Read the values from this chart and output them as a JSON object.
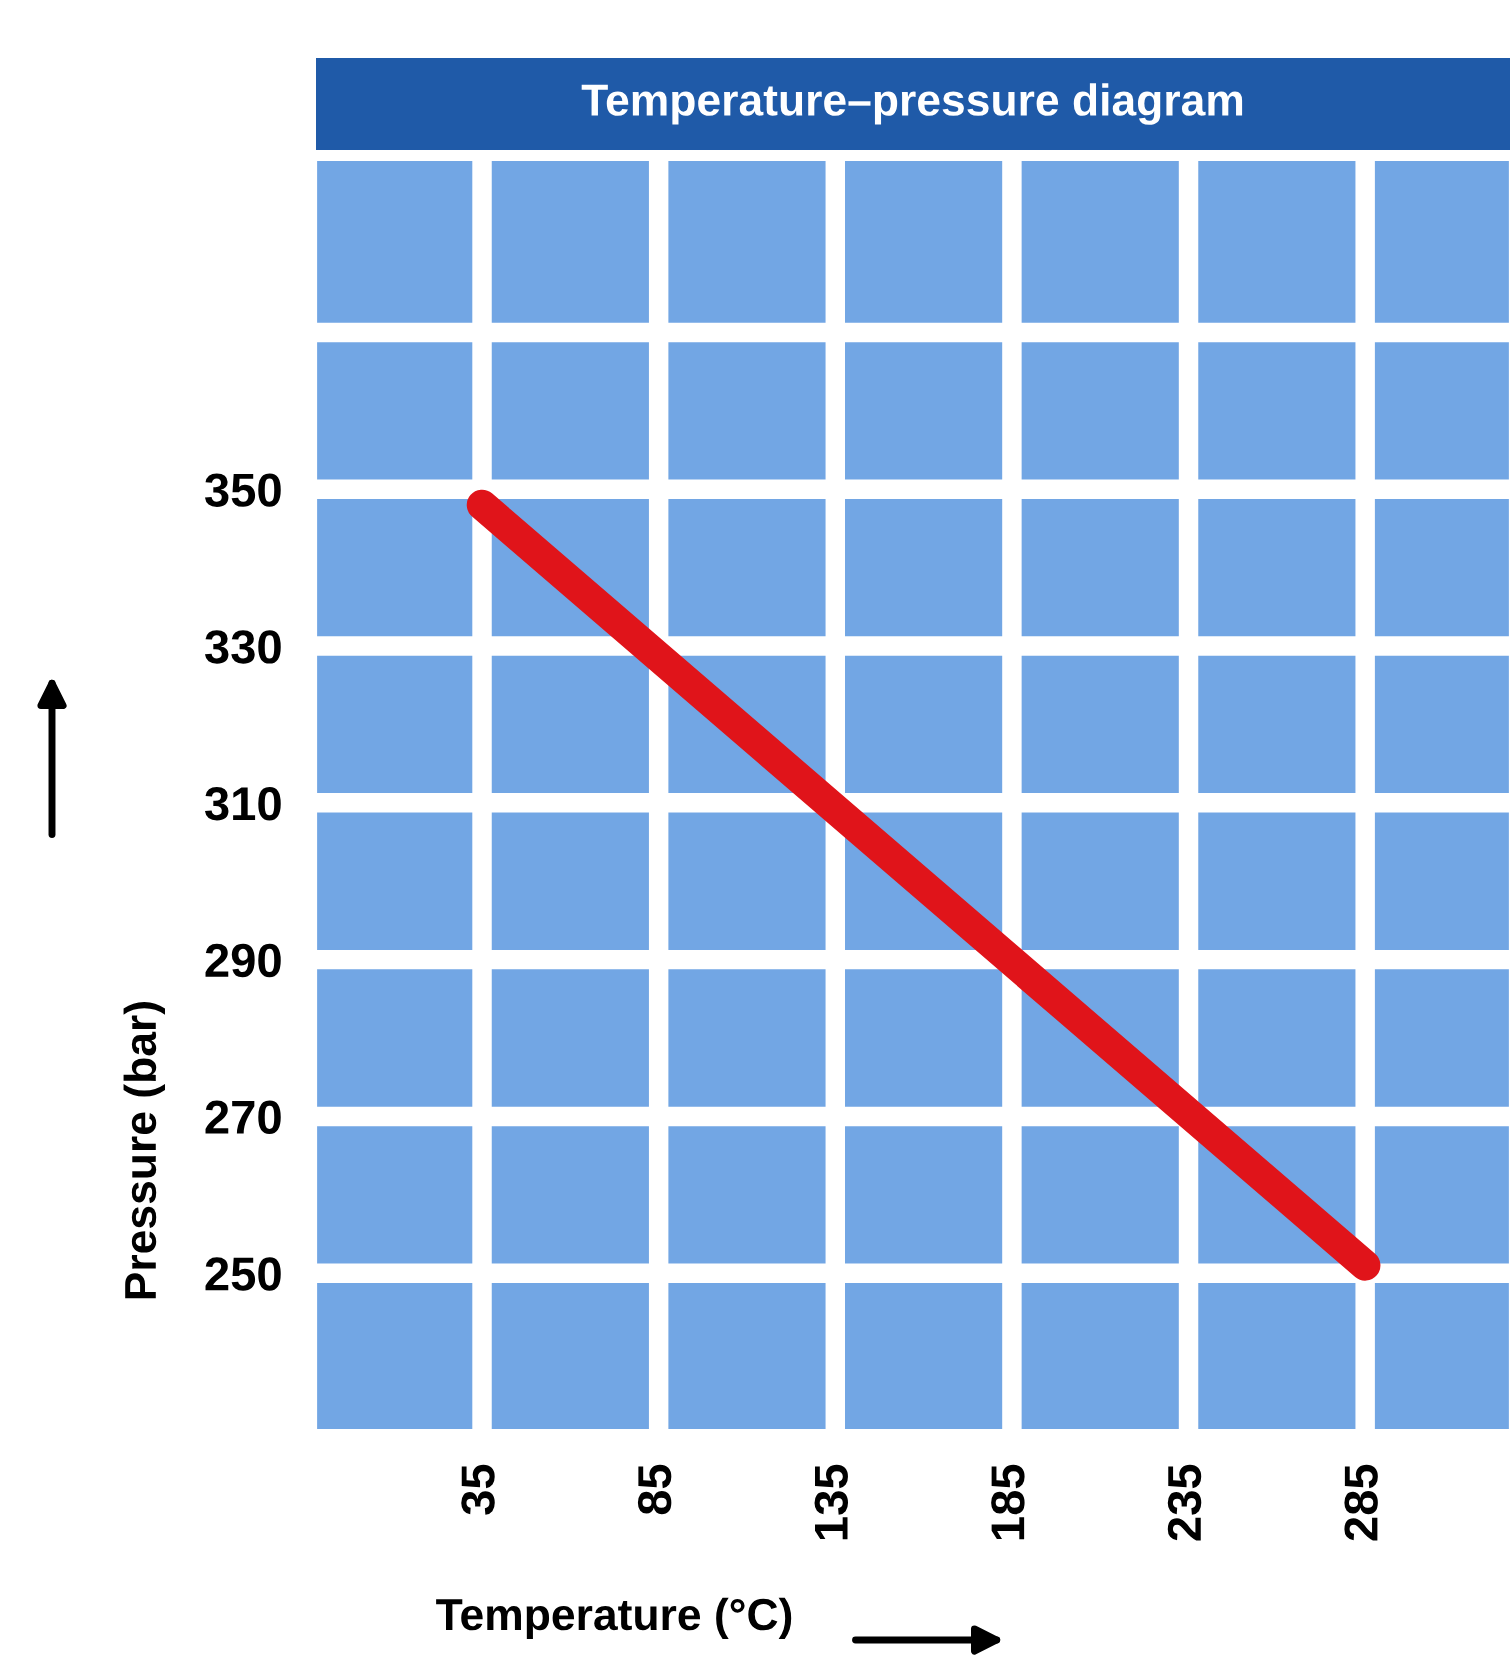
{
  "chart_data": {
    "type": "line",
    "title": "Temperature–pressure diagram",
    "xlabel": "Temperature (°C)",
    "ylabel": "Pressure (bar)",
    "x": [
      35,
      285
    ],
    "series": [
      {
        "color": "#e0141a",
        "values": [
          348,
          251
        ]
      }
    ],
    "xlim": [
      -12,
      326
    ],
    "xticks": [
      35,
      85,
      135,
      185,
      235,
      285
    ],
    "ylim": [
      230,
      392
    ],
    "yticks": [
      250,
      270,
      290,
      310,
      330,
      350,
      {
        "value": 370,
        "label": null
      }
    ],
    "grid": true,
    "legend": false,
    "line_style": "solid"
  }
}
